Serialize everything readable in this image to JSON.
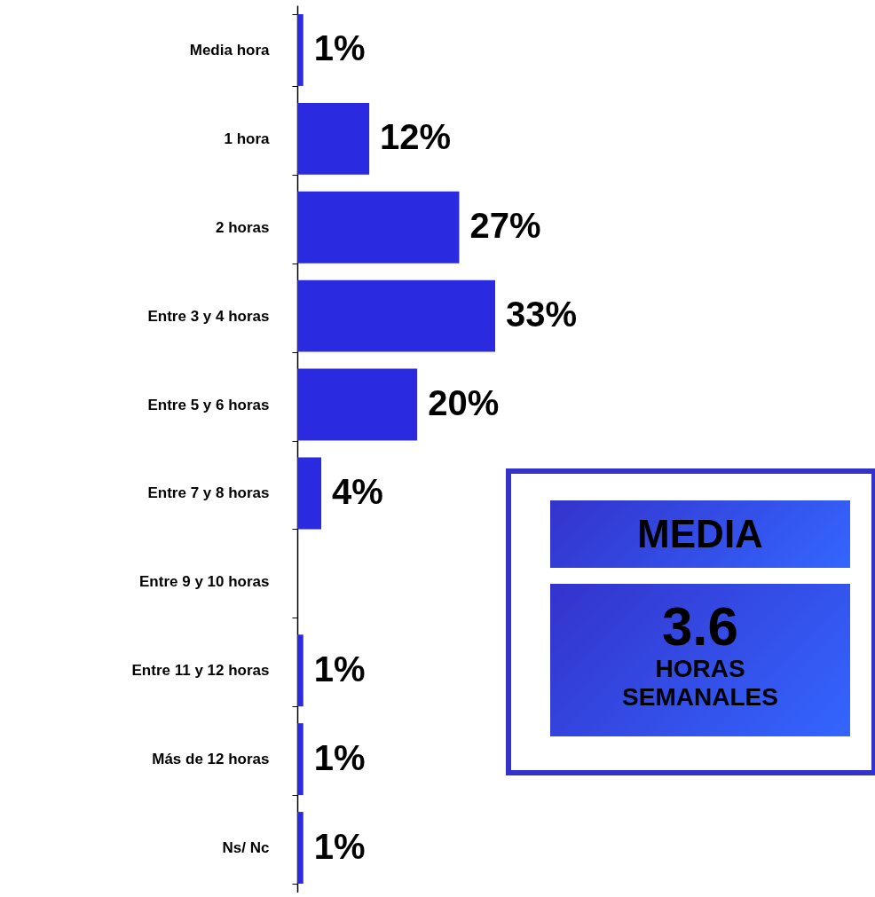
{
  "chart_data": {
    "type": "bar",
    "orientation": "horizontal",
    "categories": [
      "Media hora",
      "1 hora",
      "2 horas",
      "Entre 3 y 4 horas",
      "Entre 5 y 6 horas",
      "Entre 7 y 8 horas",
      "Entre 9 y 10 horas",
      "Entre 11 y 12 horas",
      "Más de 12 horas",
      "Ns/ Nc"
    ],
    "values": [
      1,
      12,
      27,
      33,
      20,
      4,
      null,
      1,
      1,
      1
    ],
    "value_labels": [
      "1%",
      "12%",
      "27%",
      "33%",
      "20%",
      "4%",
      null,
      "1%",
      "1%",
      "1%"
    ],
    "color": "#2a2ae0",
    "annotations": [
      "MEDIA",
      "3.6",
      "HORAS SEMANALES"
    ]
  }
}
